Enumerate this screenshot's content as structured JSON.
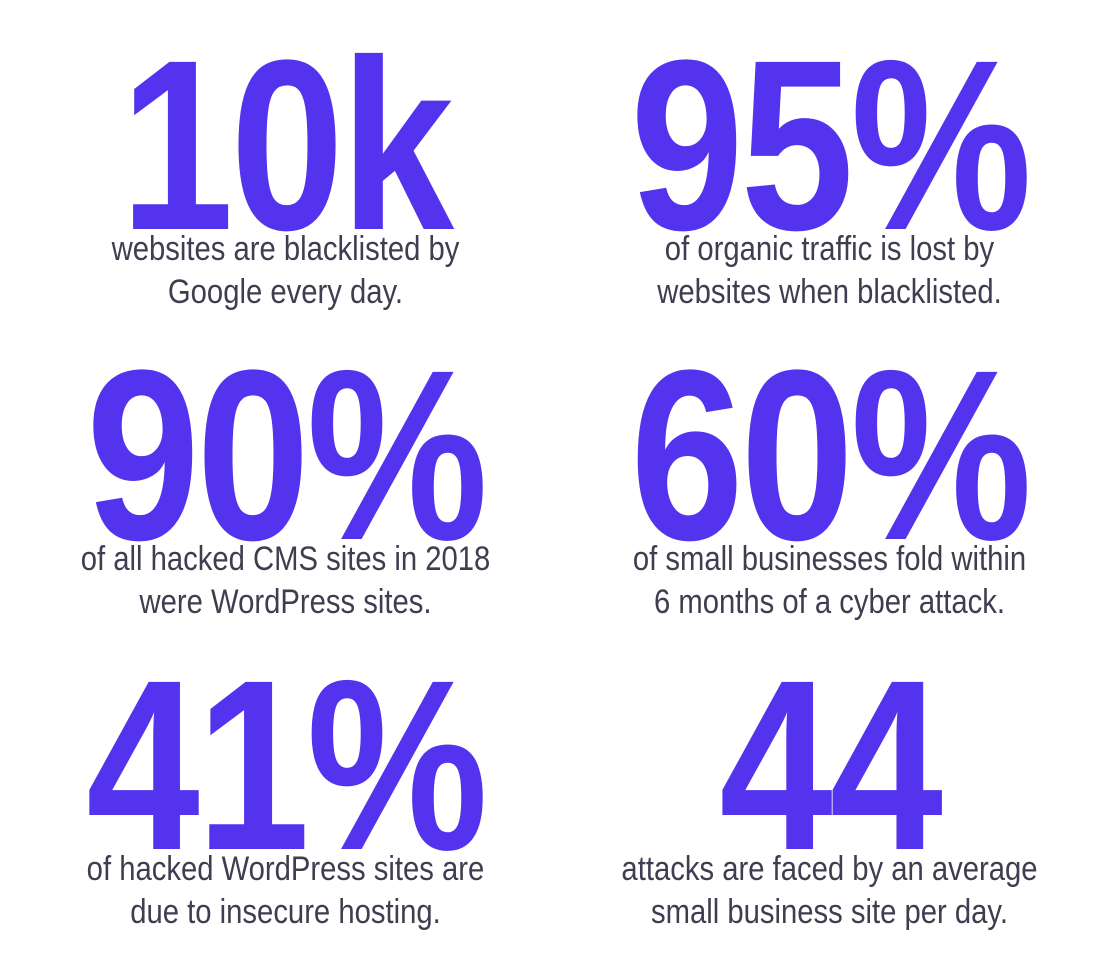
{
  "colors": {
    "accent": "#5333ed",
    "text": "#3f3d4f",
    "background": "#ffffff"
  },
  "stats": [
    {
      "value": "10k",
      "lines": [
        "websites are blacklisted by",
        "Google every day."
      ]
    },
    {
      "value": "95%",
      "lines": [
        "of organic traffic is lost by",
        "websites when blacklisted."
      ]
    },
    {
      "value": "90%",
      "lines": [
        "of all hacked CMS sites in 2018",
        "were WordPress sites."
      ]
    },
    {
      "value": "60%",
      "lines": [
        "of small businesses fold within",
        "6 months of a cyber attack."
      ]
    },
    {
      "value": "41%",
      "lines": [
        "of hacked WordPress sites are",
        "due to insecure hosting."
      ]
    },
    {
      "value": "44",
      "lines": [
        "attacks are faced by an average",
        "small business site per day."
      ]
    }
  ]
}
